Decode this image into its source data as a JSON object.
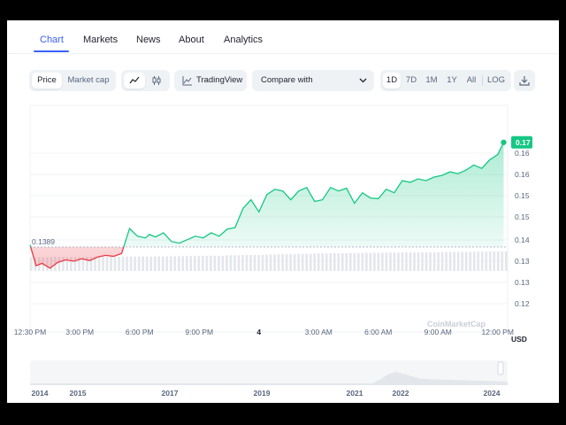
{
  "tabs": [
    {
      "label": "Chart",
      "active": true
    },
    {
      "label": "Markets",
      "active": false
    },
    {
      "label": "News",
      "active": false
    },
    {
      "label": "About",
      "active": false
    },
    {
      "label": "Analytics",
      "active": false
    }
  ],
  "toolbar": {
    "type_toggle": {
      "price_label": "Price",
      "market_cap_label": "Market cap",
      "selected": "Price"
    },
    "chart_style": {
      "selected": "line",
      "options": [
        "line-chart-icon",
        "candlestick-icon"
      ]
    },
    "tradingview_label": "TradingView",
    "compare_label": "Compare with",
    "ranges": [
      "1D",
      "7D",
      "1M",
      "1Y",
      "All"
    ],
    "selected_range": "1D",
    "log_label": "LOG",
    "download_icon": "download-icon"
  },
  "colors": {
    "accent": "#3861fb",
    "up": "#16c784",
    "down": "#ea3943",
    "text_muted": "#58667e"
  },
  "chart_data": {
    "type": "line",
    "currency_label": "USD",
    "open_price_label": "0.1389",
    "current_price_label": "0.17",
    "y_ticks": [
      "0.16",
      "0.16",
      "0.15",
      "0.15",
      "0.14",
      "0.13",
      "0.13",
      "0.12"
    ],
    "y_range": [
      0.118,
      0.172
    ],
    "x_ticks": [
      "12:30 PM",
      "3:00 PM",
      "6:00 PM",
      "9:00 PM",
      "4",
      "3:00 AM",
      "6:00 AM",
      "9:00 AM",
      "12:00 PM"
    ],
    "x_range_hours": [
      0,
      24
    ],
    "reference_price": 0.1389,
    "series": [
      {
        "x_hours": [
          0,
          0.3,
          0.6,
          1.0,
          1.4,
          1.8,
          2.2,
          2.6,
          3.0,
          3.4,
          3.8,
          4.2,
          4.6,
          5.0,
          5.4,
          5.8,
          6.0,
          6.3,
          6.7,
          7.1,
          7.5,
          7.9,
          8.3,
          8.7,
          9.1,
          9.5,
          9.9,
          10.3,
          10.7,
          11.1,
          11.5,
          11.9,
          12.3,
          12.7,
          13.1,
          13.5,
          13.9,
          14.3,
          14.7,
          15.1,
          15.5,
          15.9,
          16.3,
          16.7,
          17.1,
          17.5,
          17.9,
          18.3,
          18.7,
          19.1,
          19.5,
          19.9,
          20.3,
          20.7,
          21.1,
          21.5,
          21.9,
          22.3,
          22.7,
          23.1,
          23.5,
          23.8
        ],
        "prices": [
          0.1395,
          0.1335,
          0.1342,
          0.1328,
          0.1345,
          0.1352,
          0.1348,
          0.1355,
          0.135,
          0.136,
          0.1365,
          0.1362,
          0.137,
          0.1442,
          0.142,
          0.1415,
          0.1425,
          0.1418,
          0.143,
          0.1405,
          0.14,
          0.141,
          0.142,
          0.1415,
          0.143,
          0.142,
          0.144,
          0.1445,
          0.15,
          0.1525,
          0.149,
          0.154,
          0.1555,
          0.155,
          0.1525,
          0.155,
          0.156,
          0.152,
          0.1525,
          0.156,
          0.155,
          0.1558,
          0.1515,
          0.1545,
          0.153,
          0.1528,
          0.1555,
          0.1545,
          0.158,
          0.1575,
          0.1585,
          0.158,
          0.159,
          0.1595,
          0.1605,
          0.16,
          0.161,
          0.1625,
          0.1615,
          0.164,
          0.1655,
          0.169
        ]
      }
    ],
    "volume_relative": [
      0.7,
      0.72,
      0.71,
      0.72,
      0.73,
      0.74,
      0.74,
      0.75,
      0.76,
      0.77,
      0.78,
      0.8,
      0.82,
      0.84,
      0.86,
      0.88,
      0.9,
      0.91,
      0.92,
      0.93,
      0.94,
      0.95,
      0.96,
      0.97,
      0.98,
      0.99,
      1.0
    ],
    "watermark": "CoinMarketCap",
    "history_years": [
      "2014",
      "2015",
      "2017",
      "2019",
      "2021",
      "2022",
      "2024"
    ]
  }
}
